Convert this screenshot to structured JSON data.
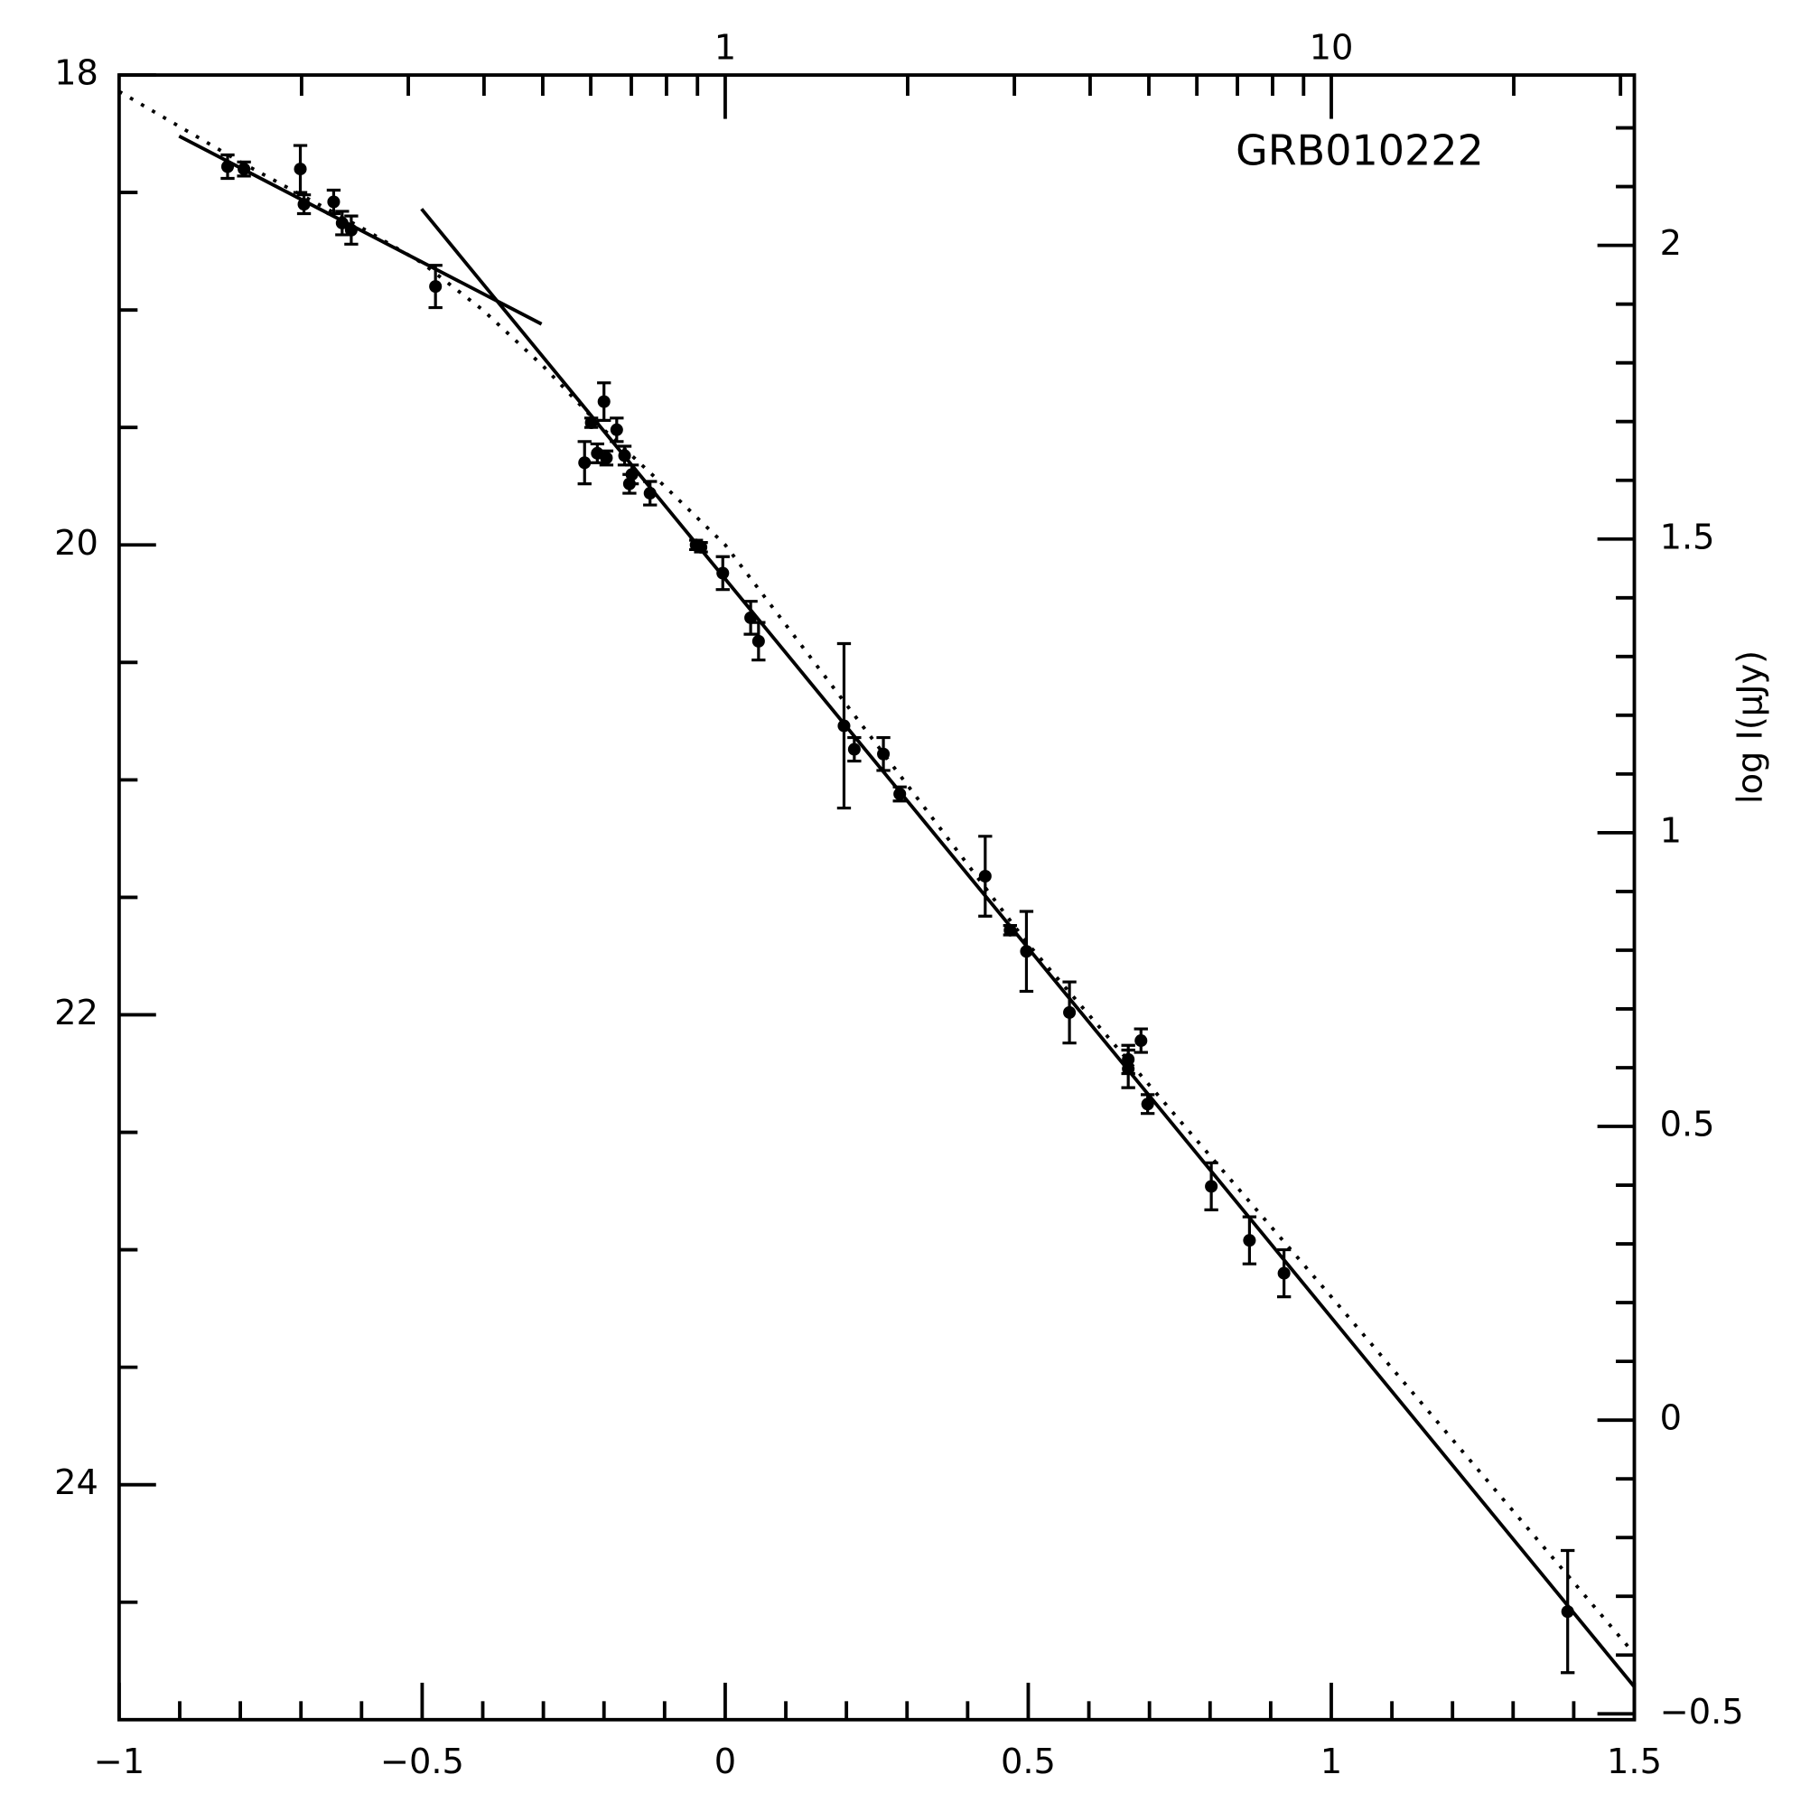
{
  "chart_data": {
    "type": "scatter",
    "annotation": "GRB010222",
    "y2label": "log I(μJy)",
    "color": "#000000",
    "xlim": [
      -1,
      1.5
    ],
    "xticks": [
      {
        "value": -1,
        "label": "−1"
      },
      {
        "value": -0.5,
        "label": "−0.5"
      },
      0,
      0.5,
      1,
      1.5
    ],
    "xminorticks": [
      -0.9,
      -0.8,
      -0.7,
      -0.6,
      -0.4,
      -0.3,
      -0.2,
      -0.1,
      0.1,
      0.2,
      0.3,
      0.4,
      0.6,
      0.7,
      0.8,
      0.9,
      1.1,
      1.2,
      1.3,
      1.4
    ],
    "x2lim": [
      0.1,
      31.62
    ],
    "x2log": true,
    "x2ticks": [
      1,
      10
    ],
    "x2minorticks": [
      0.2,
      0.3,
      0.4,
      0.5,
      0.6,
      0.7,
      0.8,
      0.9,
      2,
      3,
      4,
      5,
      6,
      7,
      8,
      9,
      20,
      30
    ],
    "ylim": [
      25,
      18
    ],
    "yticks": [
      18,
      20,
      22,
      24
    ],
    "yminorticks": [
      18.5,
      19,
      19.5,
      20.5,
      21,
      21.5,
      22.5,
      23,
      23.5,
      24.5
    ],
    "y2lim": [
      -0.51,
      2.29
    ],
    "y2ticks": [
      2,
      1.5,
      1,
      0.5,
      0,
      {
        "value": -0.5,
        "label": "−0.5"
      }
    ],
    "y2minorticks": [
      -0.4,
      -0.3,
      -0.2,
      -0.1,
      0.1,
      0.2,
      0.3,
      0.4,
      0.6,
      0.7,
      0.8,
      0.9,
      1.1,
      1.2,
      1.3,
      1.4,
      1.6,
      1.7,
      1.8,
      1.9,
      2.1,
      2.2
    ],
    "x": [
      -0.821,
      -0.794,
      -0.701,
      -0.695,
      -0.646,
      -0.632,
      -0.617,
      -0.478,
      -0.232,
      -0.221,
      -0.211,
      -0.2,
      -0.196,
      -0.179,
      -0.166,
      -0.158,
      -0.154,
      -0.124,
      -0.048,
      -0.04,
      -0.004,
      0.042,
      0.055,
      0.196,
      0.213,
      0.261,
      0.288,
      0.429,
      0.47,
      0.497,
      0.568,
      0.665,
      0.665,
      0.686,
      0.697,
      0.802,
      0.865,
      0.922,
      1.39
    ],
    "values": [
      18.39,
      18.4,
      18.4,
      18.55,
      18.54,
      18.63,
      18.66,
      18.9,
      19.65,
      19.48,
      19.61,
      19.39,
      19.63,
      19.51,
      19.62,
      19.74,
      19.7,
      19.78,
      20.0,
      20.01,
      20.12,
      20.31,
      20.41,
      20.77,
      20.87,
      20.89,
      21.06,
      21.41,
      21.64,
      21.73,
      21.99,
      22.23,
      22.19,
      22.11,
      22.38,
      22.73,
      22.96,
      23.1,
      24.54
    ],
    "errors": [
      0.05,
      0.03,
      0.1,
      0.04,
      0.05,
      0.05,
      0.06,
      0.09,
      0.09,
      0.02,
      0.04,
      0.08,
      0.03,
      0.05,
      0.04,
      0.04,
      0.04,
      0.05,
      0.02,
      0.02,
      0.07,
      0.07,
      0.08,
      0.35,
      0.05,
      0.07,
      0.03,
      0.17,
      0.02,
      0.17,
      0.13,
      0.08,
      0.06,
      0.05,
      0.04,
      0.1,
      0.1,
      0.1,
      0.26
    ],
    "fits": [
      {
        "style": "solid",
        "x": [
          -0.901,
          -0.303
        ],
        "values": [
          18.26,
          19.06
        ]
      },
      {
        "style": "solid",
        "x": [
          -0.501,
          1.5
        ],
        "values": [
          18.57,
          24.86
        ]
      },
      {
        "style": "dotted",
        "x": [
          -1,
          -0.8,
          -0.6,
          -0.5,
          -0.45,
          -0.4,
          -0.35,
          -0.3,
          -0.2,
          -0.1,
          0,
          0.5,
          1,
          1.5
        ],
        "values": [
          18.07,
          18.37,
          18.65,
          18.8,
          18.9,
          19.0,
          19.12,
          19.24,
          19.51,
          19.75,
          20.0,
          21.7,
          23.2,
          24.72
        ]
      }
    ]
  }
}
